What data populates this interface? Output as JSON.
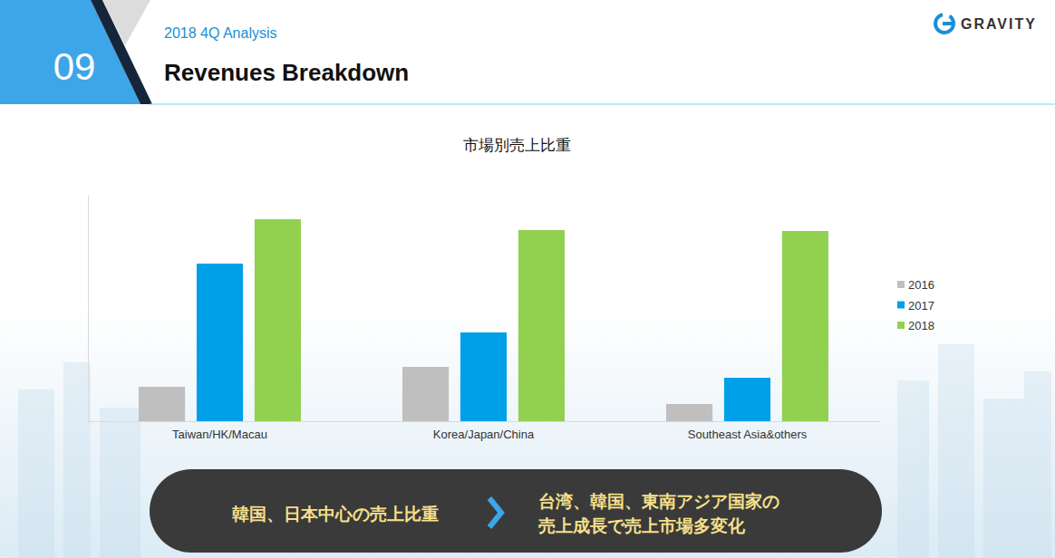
{
  "header": {
    "number": "09",
    "section": "2018 4Q Analysis",
    "title": "Revenues Breakdown",
    "logo": "GRAVITY"
  },
  "chart_data": {
    "type": "bar",
    "title": "市場別売上比重",
    "categories": [
      "Taiwan/HK/Macau",
      "Korea/Japan/China",
      "Southeast Asia&others"
    ],
    "series": [
      {
        "name": "2016",
        "color": "#bfbfbf",
        "values": [
          38,
          60,
          19
        ]
      },
      {
        "name": "2017",
        "color": "#00a0e9",
        "values": [
          174,
          98,
          48
        ]
      },
      {
        "name": "2018",
        "color": "#92d050",
        "values": [
          223,
          211,
          210
        ]
      }
    ],
    "ylim": [
      0,
      250
    ],
    "yticks": [],
    "tick_labels": "x",
    "legend": "right"
  },
  "banner": {
    "from": "韓国、日本中心の売上比重",
    "to": [
      "台湾、韓国、東南アジア国家の",
      "売上成長で売上市場多変化"
    ]
  }
}
